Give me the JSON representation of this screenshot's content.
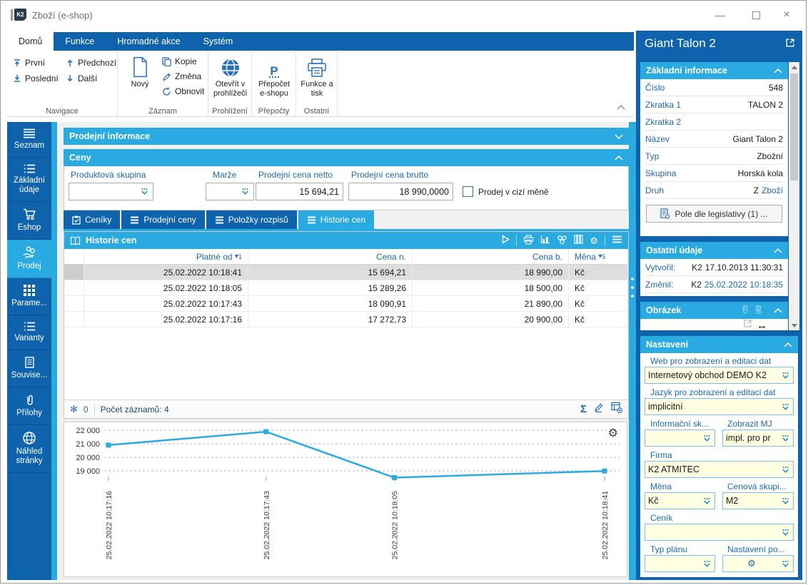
{
  "window": {
    "title": "Zboží (e-shop)",
    "logo": "K2",
    "controls": {
      "minimize": "—",
      "close": "×"
    }
  },
  "ribbon": {
    "tabs": [
      {
        "label": "Domů",
        "active": true
      },
      {
        "label": "Funkce"
      },
      {
        "label": "Hromadné akce"
      },
      {
        "label": "Systém"
      }
    ],
    "buttons": {
      "prvni": "První",
      "posledni": "Poslední",
      "predchozi": "Předchozí",
      "dalsi": "Další",
      "novy": "Nový",
      "kopie": "Kopie",
      "zmena": "Změna",
      "obnovit": "Obnovit",
      "otevrit_l1": "Otevřít v",
      "otevrit_l2": "prohlížeči",
      "prepocet_l1": "Přepočet",
      "prepocet_l2": "e-shopu",
      "prepocet_letter": "P",
      "funkce_l1": "Funkce a",
      "funkce_l2": "tisk"
    },
    "groups": [
      "Navigace",
      "Záznam",
      "Prohlížení",
      "Přepočty",
      "Ostatní"
    ]
  },
  "sidebar": {
    "items": [
      {
        "label": "Seznam"
      },
      {
        "label": "Základní údaje"
      },
      {
        "label": "Eshop"
      },
      {
        "label": "Prodej",
        "active": true
      },
      {
        "label": "Parame..."
      },
      {
        "label": "Varianty"
      },
      {
        "label": "Souvise..."
      },
      {
        "label": "Přílohy"
      },
      {
        "label": "Náhled stránky"
      }
    ]
  },
  "main": {
    "section_prodejni": "Prodejní informace",
    "section_ceny": "Ceny",
    "fields": {
      "produktova_skupina": {
        "label": "Produktová skupina",
        "value": ""
      },
      "marze": {
        "label": "Marže",
        "value": ""
      },
      "cena_netto": {
        "label": "Prodejní cena netto",
        "value": "15 694,21"
      },
      "cena_brutto": {
        "label": "Prodejní cena brutto",
        "value": "18 990,0000"
      },
      "cizi_mena": {
        "label": "Prodej v cizí měně",
        "checked": false
      }
    },
    "tabs": [
      {
        "label": "Ceníky"
      },
      {
        "label": "Prodejní ceny"
      },
      {
        "label": "Položky rozpisů"
      },
      {
        "label": "Historie cen",
        "active": true
      }
    ],
    "table": {
      "title": "Historie cen",
      "columns": [
        {
          "label": "Platné od",
          "sort": "▾",
          "sort_order": "1"
        },
        {
          "label": "Cena n."
        },
        {
          "label": "Cena b."
        },
        {
          "label": "Měna",
          "sort": "▾",
          "sort_order": "5"
        }
      ],
      "rows": [
        {
          "platne_od": "25.02.2022 10:18:41",
          "cena_n": "15 694,21",
          "cena_b": "18 990,00",
          "mena": "Kč"
        },
        {
          "platne_od": "25.02.2022 10:18:05",
          "cena_n": "15 289,26",
          "cena_b": "18 500,00",
          "mena": "Kč"
        },
        {
          "platne_od": "25.02.2022 10:17:43",
          "cena_n": "18 090,91",
          "cena_b": "21 890,00",
          "mena": "Kč"
        },
        {
          "platne_od": "25.02.2022 10:17:16",
          "cena_n": "17 272,73",
          "cena_b": "20 900,00",
          "mena": "Kč"
        }
      ],
      "footer": {
        "flag_count": "0",
        "records": "Počet záznamů: 4"
      }
    }
  },
  "chart_data": {
    "type": "line",
    "x": [
      "25.02.2022 10:17:16",
      "25.02.2022 10:17:43",
      "25.02.2022 10:18:05",
      "25.02.2022 10:18:41"
    ],
    "x_seconds": [
      0,
      27,
      49,
      85
    ],
    "series": [
      {
        "name": "Cena b.",
        "values": [
          20900,
          21890,
          18500,
          18990
        ]
      }
    ],
    "yticks": [
      19000,
      20000,
      21000,
      22000
    ],
    "ytick_labels": [
      "19 000",
      "20 000",
      "21 000",
      "22 000"
    ],
    "ylim": [
      18300,
      22600
    ],
    "grid": "horizontal-dashed",
    "legend": "none",
    "line_color": "#29abe2"
  },
  "right_panel": {
    "title": "Giant Talon 2",
    "zakladni": {
      "header": "Základní informace",
      "rows": [
        {
          "label": "Číslo",
          "value": "548",
          "link": ""
        },
        {
          "label": "Zkratka 1",
          "value": "TALON 2",
          "link": ""
        },
        {
          "label": "Zkratka 2",
          "value": "",
          "link": ""
        },
        {
          "label": "Název",
          "value": "Giant Talon 2",
          "link": ""
        },
        {
          "label": "Typ",
          "value": "Zbožní",
          "link": ""
        },
        {
          "label": "Skupina",
          "value": "Horská kola",
          "link": ""
        },
        {
          "label": "Druh",
          "value": "Z",
          "link": "Zboží"
        }
      ],
      "button": "Pole dle legislativy (1) ..."
    },
    "ostatni": {
      "header": "Ostatní údaje",
      "rows": [
        {
          "label": "Vytvořil:",
          "user": "K2",
          "date": "17.10.2013 11:30:31"
        },
        {
          "label": "Změnil:",
          "user": "K2",
          "date": "25.02.2022 10:18:35"
        }
      ]
    },
    "obrazek": {
      "header": "Obrázek"
    },
    "nastaveni": {
      "header": "Nastavení",
      "fields": [
        {
          "label": "Web pro zobrazení a editaci dat",
          "value": "Internetový obchod DEMO K2"
        },
        {
          "label": "Jazyk pro zobrazení a editaci dat",
          "value": "implicitní"
        },
        {
          "label": "Informační sk...",
          "value": ""
        },
        {
          "label": "Zobrazit MJ",
          "value": "impl. pro pr"
        },
        {
          "label": "Firma",
          "value": "K2 ATMITEC"
        },
        {
          "label": "Měna",
          "value": "Kč"
        },
        {
          "label": "Cenová skupi...",
          "value": "M2"
        },
        {
          "label": "Ceník",
          "value": ""
        },
        {
          "label": "Typ plánu",
          "value": ""
        },
        {
          "label": "Nastavení po...",
          "value": ""
        }
      ]
    }
  },
  "colors": {
    "dark_blue": "#0f63ac",
    "accent_blue": "#29abe2",
    "icon_blue": "#2c6fba",
    "label_blue": "#1e68b0",
    "field_yellow": "#ffffe1",
    "selected_row": "#dedede"
  }
}
